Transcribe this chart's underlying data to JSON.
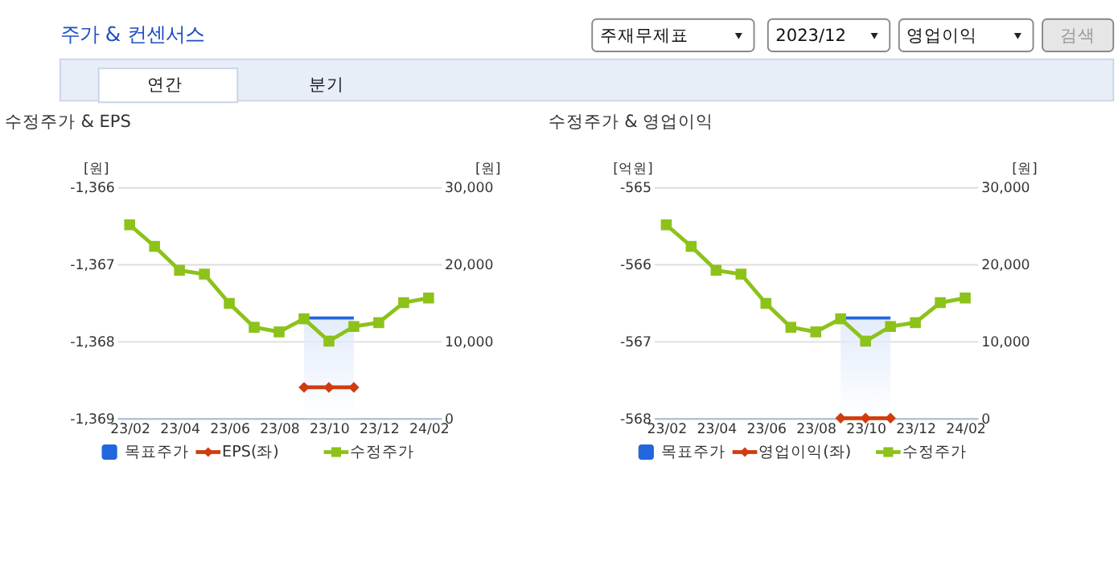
{
  "chart_data": [
    {
      "type": "other",
      "title": "주가 & 컨센서스",
      "annotations": [
        "주재무제표",
        "2023/12",
        "영업이익",
        "검색",
        "연간",
        "분기"
      ]
    },
    {
      "type": "line",
      "title": "수정주가 & EPS",
      "ylabel": "[원]",
      "y2label": "[원]",
      "categories": [
        "23/02",
        null,
        "23/04",
        null,
        "23/06",
        null,
        "23/08",
        null,
        "23/10",
        null,
        "23/12",
        null,
        "24/02"
      ],
      "ylim": [
        -1369,
        -1366
      ],
      "yticks": [
        {
          "value": -1369,
          "label": "-1,369"
        },
        {
          "value": -1368,
          "label": "-1,368"
        },
        {
          "value": -1367,
          "label": "-1,367"
        },
        {
          "value": -1366,
          "label": "-1,366"
        }
      ],
      "y2lim": [
        0,
        30000
      ],
      "y2ticks": [
        0,
        {
          "value": 10000,
          "label": "10,000"
        },
        {
          "value": 20000,
          "label": "20,000"
        },
        {
          "value": 30000,
          "label": "30,000"
        }
      ],
      "grid": "y",
      "legend": "bottom",
      "series": [
        {
          "name": "목표주가",
          "type": "area",
          "axis": "y2",
          "color": "#2266dd",
          "values": [
            null,
            null,
            null,
            null,
            null,
            null,
            null,
            13000,
            13000,
            13000,
            null,
            null,
            null
          ]
        },
        {
          "name": "EPS(좌)",
          "type": "line",
          "marker": "diamond",
          "color": "#d13c0f",
          "values": [
            null,
            null,
            null,
            null,
            null,
            null,
            null,
            -1368.6,
            -1368.6,
            -1368.6,
            null,
            null,
            null
          ]
        },
        {
          "name": "수정주가",
          "type": "line",
          "axis": "y2",
          "marker": "square",
          "color": "#8cc21a",
          "values": [
            25100,
            22300,
            19200,
            18700,
            14900,
            11800,
            11200,
            12900,
            10000,
            11900,
            12400,
            15000,
            15600
          ]
        }
      ]
    },
    {
      "type": "line",
      "title": "수정주가 & 영업이익",
      "ylabel": "[억원]",
      "y2label": "[원]",
      "categories": [
        "23/02",
        null,
        "23/04",
        null,
        "23/06",
        null,
        "23/08",
        null,
        "23/10",
        null,
        "23/12",
        null,
        "24/02"
      ],
      "ylim": [
        -568,
        -565
      ],
      "yticks": [
        -568,
        -567,
        -566,
        -565
      ],
      "y2lim": [
        0,
        30000
      ],
      "y2ticks": [
        0,
        {
          "value": 10000,
          "label": "10,000"
        },
        {
          "value": 20000,
          "label": "20,000"
        },
        {
          "value": 30000,
          "label": "30,000"
        }
      ],
      "grid": "y",
      "legend": "bottom",
      "series": [
        {
          "name": "목표주가",
          "type": "area",
          "axis": "y2",
          "color": "#2266dd",
          "values": [
            null,
            null,
            null,
            null,
            null,
            null,
            null,
            13000,
            13000,
            13000,
            null,
            null,
            null
          ]
        },
        {
          "name": "영업이익(좌)",
          "type": "line",
          "marker": "diamond",
          "color": "#d13c0f",
          "values": [
            null,
            null,
            null,
            null,
            null,
            null,
            null,
            -568,
            -568,
            -568,
            null,
            null,
            null
          ]
        },
        {
          "name": "수정주가",
          "type": "line",
          "axis": "y2",
          "marker": "square",
          "color": "#8cc21a",
          "values": [
            25100,
            22300,
            19200,
            18700,
            14900,
            11800,
            11200,
            12900,
            10000,
            11900,
            12400,
            15000,
            15600
          ]
        }
      ]
    }
  ]
}
